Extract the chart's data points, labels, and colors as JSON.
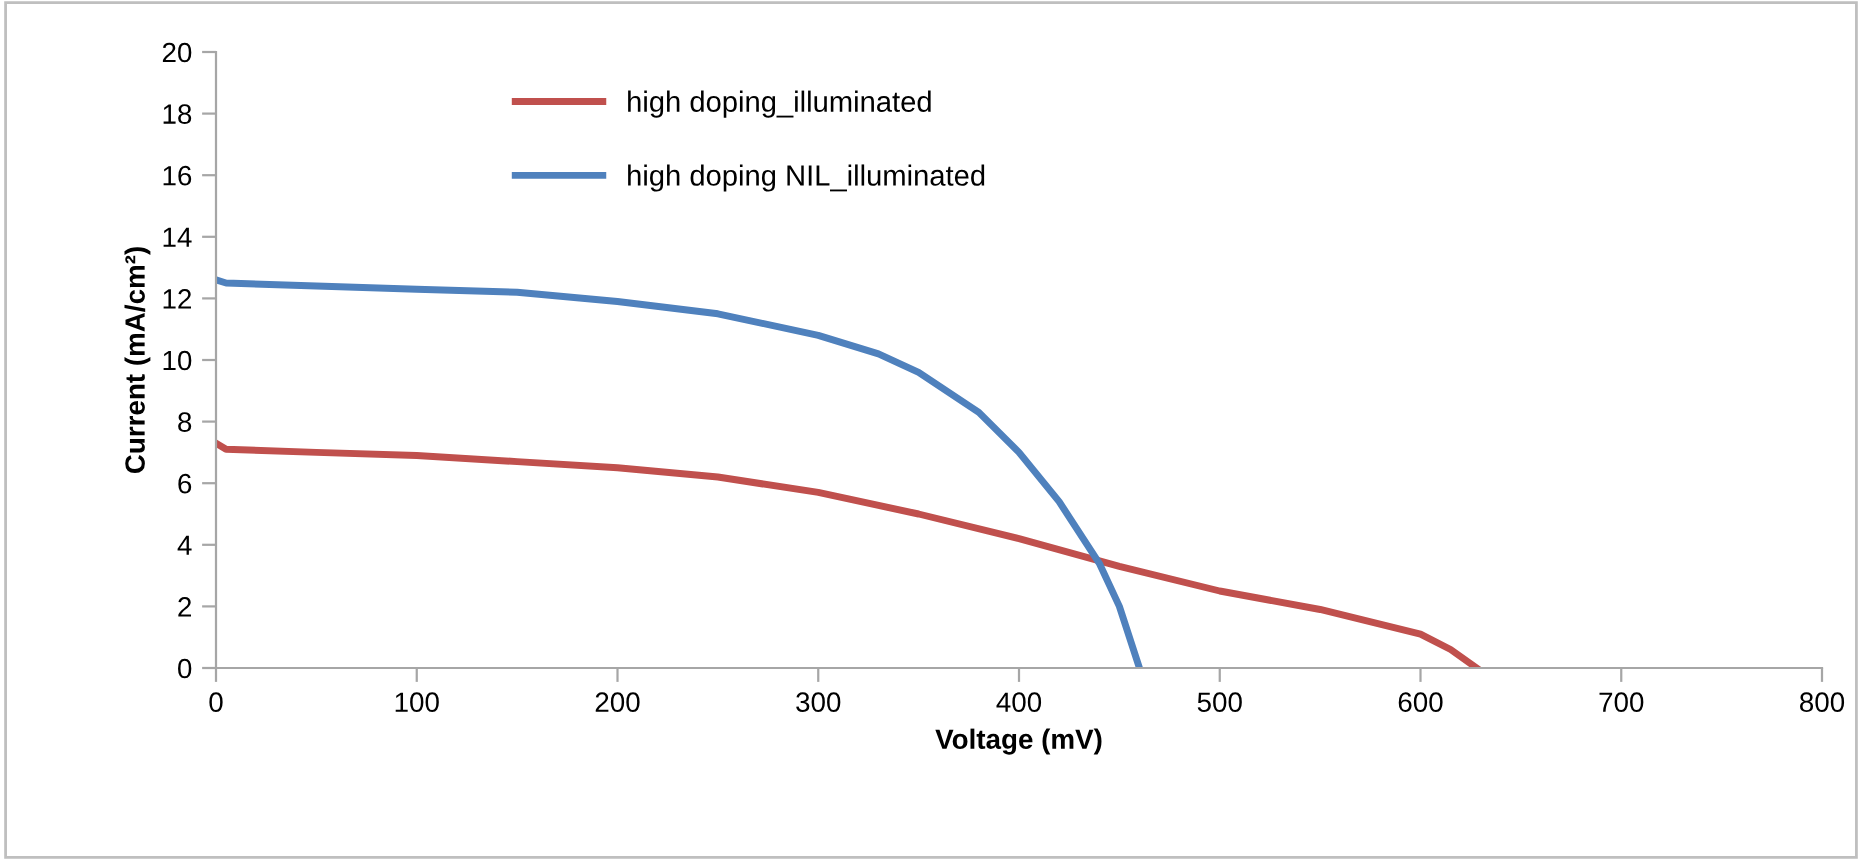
{
  "chart_data": {
    "type": "line",
    "xlabel": "Voltage (mV)",
    "ylabel": "Current (mA/cm²)",
    "xlim": [
      0,
      800
    ],
    "xticks": [
      0,
      100,
      200,
      300,
      400,
      500,
      600,
      700,
      800
    ],
    "ylim": [
      0,
      20
    ],
    "yticks": [
      0,
      2,
      4,
      6,
      8,
      10,
      12,
      14,
      16,
      18,
      20
    ],
    "grid": false,
    "legend": "top left",
    "marker": "none",
    "line_style": "solid",
    "series": [
      {
        "name": "high doping_illuminated",
        "color": "#c0504d",
        "x": [
          0,
          5,
          50,
          100,
          150,
          200,
          250,
          300,
          350,
          400,
          450,
          500,
          550,
          600,
          615,
          628
        ],
        "values": [
          7.3,
          7.1,
          7.0,
          6.9,
          6.7,
          6.5,
          6.2,
          5.7,
          5.0,
          4.2,
          3.3,
          2.5,
          1.9,
          1.1,
          0.6,
          0
        ]
      },
      {
        "name": "high doping NIL_illuminated",
        "color": "#4f81bd",
        "x": [
          0,
          5,
          50,
          100,
          150,
          200,
          250,
          300,
          330,
          350,
          380,
          400,
          420,
          440,
          450,
          460
        ],
        "values": [
          12.6,
          12.5,
          12.4,
          12.3,
          12.2,
          11.9,
          11.5,
          10.8,
          10.2,
          9.6,
          8.3,
          7.0,
          5.4,
          3.4,
          2.0,
          0
        ]
      }
    ]
  }
}
